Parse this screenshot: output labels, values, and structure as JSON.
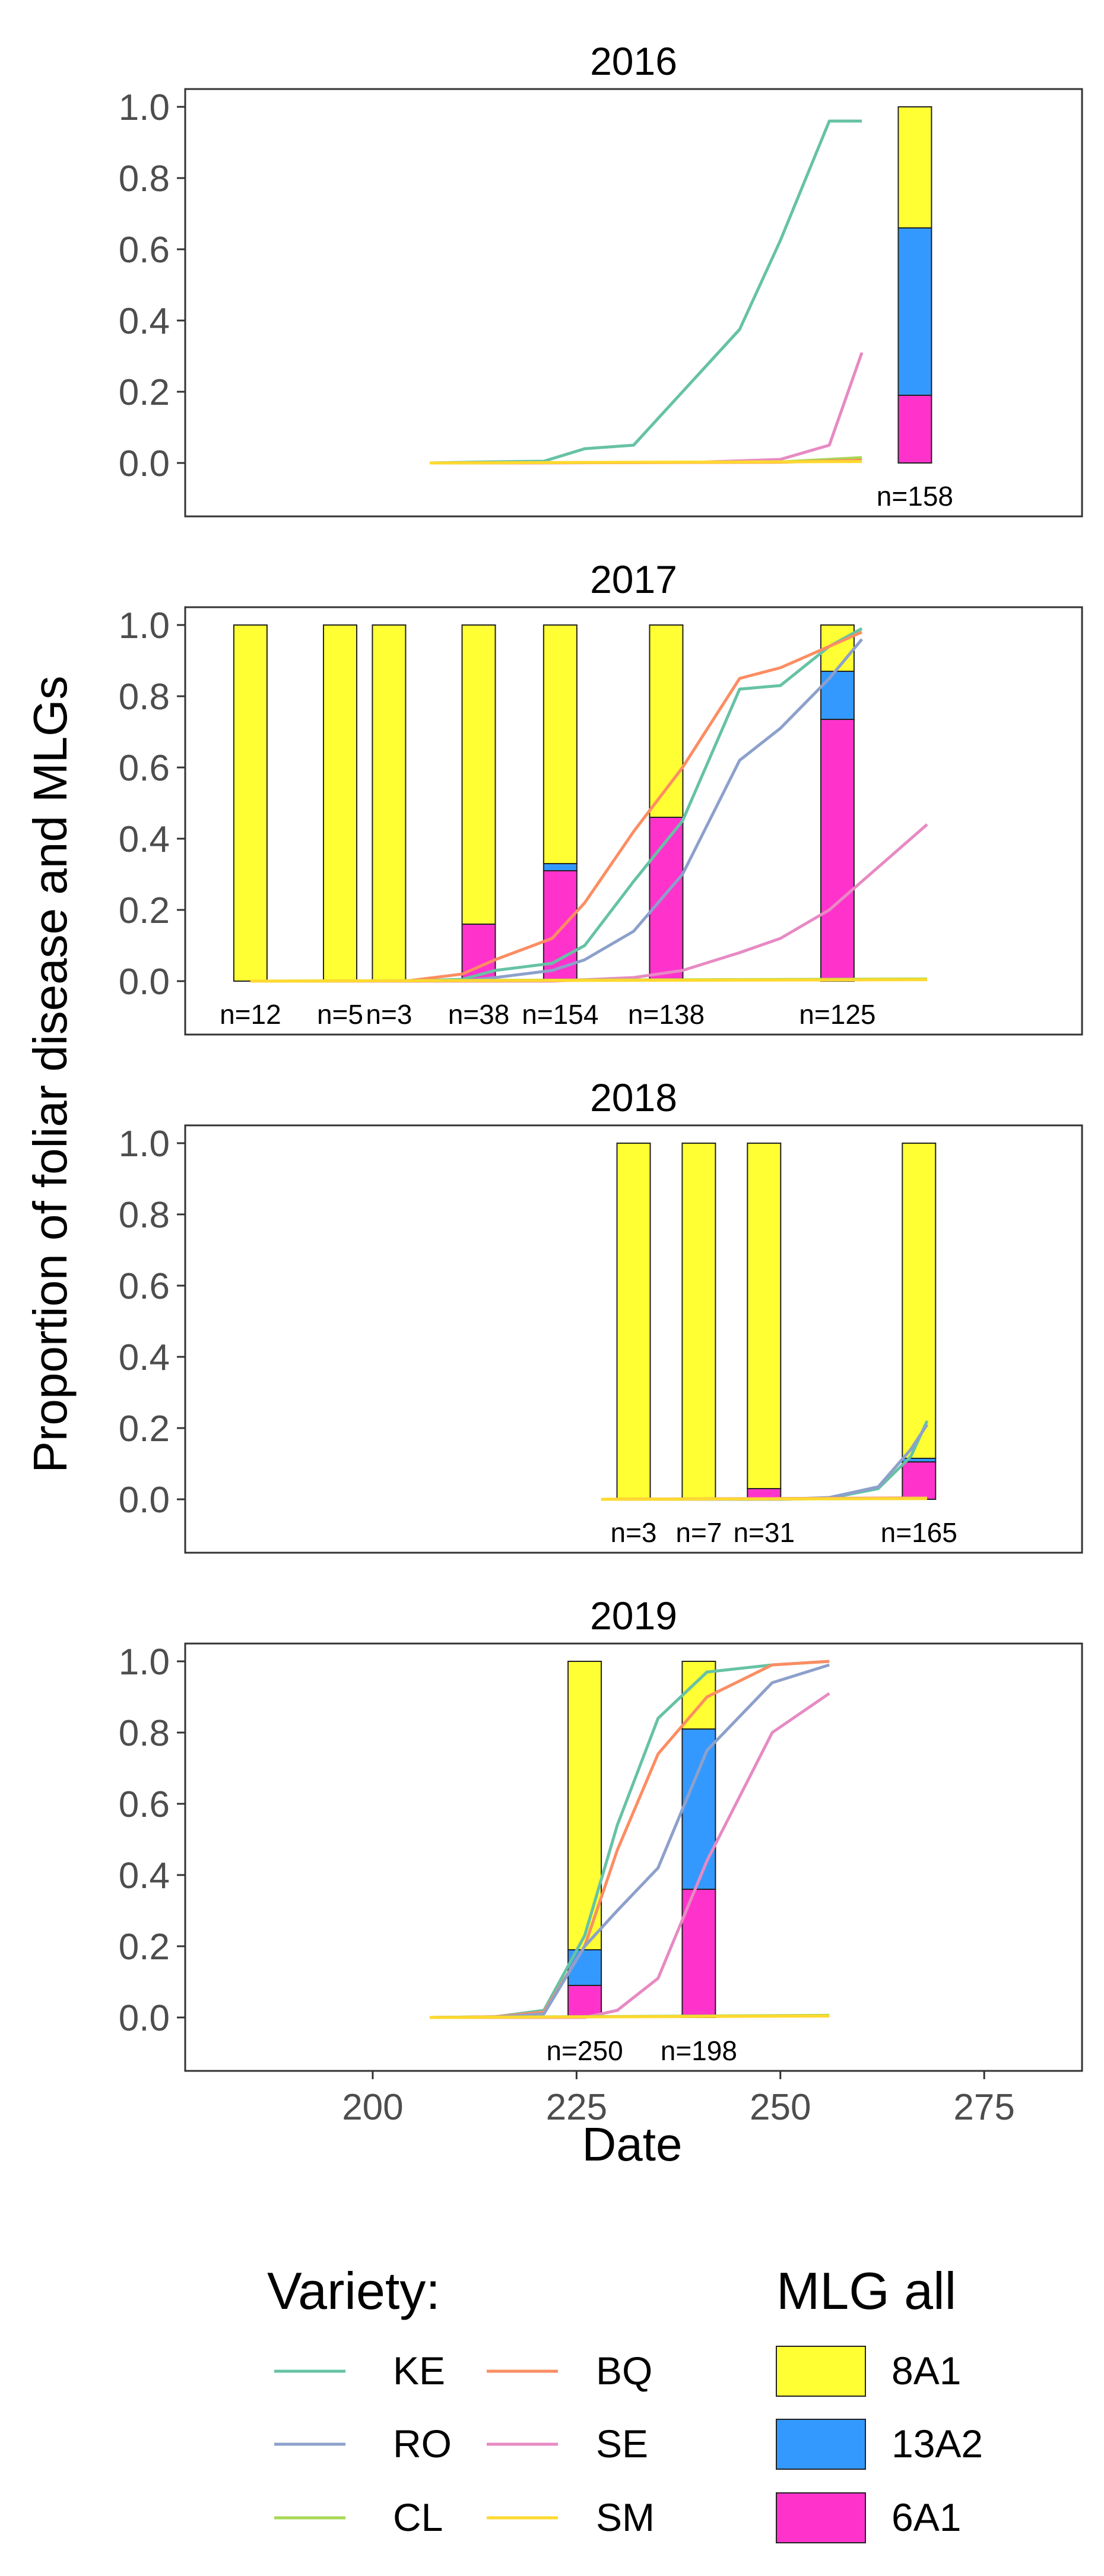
{
  "chart_data": {
    "type": "line",
    "ylabel": "Proportion of foliar disease and MLGs",
    "xlabel": "Date",
    "x_ticks": [
      200,
      225,
      250,
      275
    ],
    "y_ticks": [
      "0.0",
      "0.2",
      "0.4",
      "0.6",
      "0.8",
      "1.0"
    ],
    "xlim": [
      177,
      287
    ],
    "ylim": [
      -0.15,
      1.05
    ],
    "grid": false,
    "legend_position": "bottom",
    "variety_legend": {
      "title": "Variety:",
      "items": [
        {
          "name": "KE",
          "color": "#66c2a5"
        },
        {
          "name": "BQ",
          "color": "#fc8d62"
        },
        {
          "name": "RO",
          "color": "#8da0cb"
        },
        {
          "name": "SE",
          "color": "#e78ac3"
        },
        {
          "name": "CL",
          "color": "#a6d854"
        },
        {
          "name": "SM",
          "color": "#ffd92f"
        }
      ]
    },
    "mlg_legend": {
      "title": "MLG all",
      "items": [
        {
          "name": "8A1",
          "color": "#ffff33"
        },
        {
          "name": "13A2",
          "color": "#3399ff"
        },
        {
          "name": "6A1",
          "color": "#ff33cc"
        }
      ]
    },
    "panels": [
      {
        "title": "2016",
        "series": [
          {
            "name": "KE",
            "x": [
              207,
              214,
              221,
              226,
              232,
              240,
              245,
              250,
              256,
              260
            ],
            "y": [
              0.0,
              0.003,
              0.005,
              0.04,
              0.05,
              0.25,
              0.375,
              0.625,
              0.96,
              0.96
            ]
          },
          {
            "name": "SE",
            "x": [
              207,
              220,
              240,
              250,
              256,
              260
            ],
            "y": [
              0.0,
              0.0,
              0.002,
              0.01,
              0.05,
              0.31
            ]
          },
          {
            "name": "CL",
            "x": [
              207,
              250,
              260
            ],
            "y": [
              0.0,
              0.003,
              0.015
            ]
          },
          {
            "name": "BQ",
            "x": [
              207,
              250,
              260
            ],
            "y": [
              0.0,
              0.002,
              0.008
            ]
          },
          {
            "name": "SM",
            "x": [
              207,
              260
            ],
            "y": [
              0.0,
              0.004
            ]
          }
        ],
        "bars": [
          {
            "x": 266.5,
            "n_label": "n=158",
            "segments": {
              "8A1": 0.34,
              "13A2": 0.47,
              "6A1": 0.19
            }
          }
        ]
      },
      {
        "title": "2017",
        "series": [
          {
            "name": "KE",
            "x": [
              185,
              199,
              204,
              211,
              215,
              222,
              226,
              232,
              238,
              245,
              250,
              256,
              260
            ],
            "y": [
              0.0,
              0.0,
              0.0,
              0.005,
              0.03,
              0.05,
              0.1,
              0.28,
              0.45,
              0.82,
              0.83,
              0.94,
              0.99
            ]
          },
          {
            "name": "BQ",
            "x": [
              185,
              204,
              211,
              215,
              222,
              226,
              232,
              238,
              245,
              250,
              256,
              260
            ],
            "y": [
              0.0,
              0.0,
              0.02,
              0.06,
              0.12,
              0.22,
              0.42,
              0.6,
              0.85,
              0.88,
              0.94,
              0.98
            ]
          },
          {
            "name": "RO",
            "x": [
              185,
              211,
              215,
              222,
              226,
              232,
              238,
              245,
              250,
              256,
              260
            ],
            "y": [
              0.0,
              0.0,
              0.01,
              0.03,
              0.06,
              0.14,
              0.3,
              0.62,
              0.71,
              0.85,
              0.96
            ]
          },
          {
            "name": "SE",
            "x": [
              185,
              222,
              232,
              238,
              245,
              250,
              256,
              260,
              265,
              268
            ],
            "y": [
              0.0,
              0.0,
              0.01,
              0.03,
              0.08,
              0.12,
              0.2,
              0.28,
              0.38,
              0.44
            ]
          },
          {
            "name": "CL",
            "x": [
              185,
              268
            ],
            "y": [
              0.0,
              0.006
            ]
          },
          {
            "name": "SM",
            "x": [
              185,
              268
            ],
            "y": [
              0.0,
              0.004
            ]
          }
        ],
        "bars": [
          {
            "x": 185,
            "n_label": "n=12",
            "segments": {
              "8A1": 1.0,
              "13A2": 0.0,
              "6A1": 0.0
            }
          },
          {
            "x": 196,
            "n_label": "n=5",
            "segments": {
              "8A1": 1.0,
              "13A2": 0.0,
              "6A1": 0.0
            }
          },
          {
            "x": 202,
            "n_label": "n=3",
            "segments": {
              "8A1": 1.0,
              "13A2": 0.0,
              "6A1": 0.0
            }
          },
          {
            "x": 213,
            "n_label": "n=38",
            "segments": {
              "8A1": 0.84,
              "13A2": 0.0,
              "6A1": 0.16
            }
          },
          {
            "x": 223,
            "n_label": "n=154",
            "segments": {
              "8A1": 0.67,
              "13A2": 0.02,
              "6A1": 0.31
            }
          },
          {
            "x": 236,
            "n_label": "n=138",
            "segments": {
              "8A1": 0.54,
              "13A2": 0.0,
              "6A1": 0.46
            }
          },
          {
            "x": 257,
            "n_label": "n=125",
            "segments": {
              "8A1": 0.13,
              "13A2": 0.135,
              "6A1": 0.735
            }
          }
        ]
      },
      {
        "title": "2018",
        "series": [
          {
            "name": "KE",
            "x": [
              228,
              250,
              256,
              262,
              266,
              268
            ],
            "y": [
              0.0,
              0.0,
              0.003,
              0.03,
              0.12,
              0.22
            ]
          },
          {
            "name": "RO",
            "x": [
              228,
              250,
              256,
              262,
              266,
              268
            ],
            "y": [
              0.0,
              0.0,
              0.005,
              0.035,
              0.14,
              0.21
            ]
          },
          {
            "name": "BQ",
            "x": [
              228,
              268
            ],
            "y": [
              0.0,
              0.004
            ]
          },
          {
            "name": "SE",
            "x": [
              228,
              268
            ],
            "y": [
              0.0,
              0.003
            ]
          },
          {
            "name": "CL",
            "x": [
              228,
              268
            ],
            "y": [
              0.0,
              0.002
            ]
          },
          {
            "name": "SM",
            "x": [
              228,
              268
            ],
            "y": [
              0.0,
              0.002
            ]
          }
        ],
        "bars": [
          {
            "x": 232,
            "n_label": "n=3",
            "segments": {
              "8A1": 1.0,
              "13A2": 0.0,
              "6A1": 0.0
            }
          },
          {
            "x": 240,
            "n_label": "n=7",
            "segments": {
              "8A1": 1.0,
              "13A2": 0.0,
              "6A1": 0.0
            }
          },
          {
            "x": 248,
            "n_label": "n=31",
            "segments": {
              "8A1": 0.97,
              "13A2": 0.0,
              "6A1": 0.03
            }
          },
          {
            "x": 267,
            "n_label": "n=165",
            "segments": {
              "8A1": 0.885,
              "13A2": 0.01,
              "6A1": 0.105
            }
          }
        ]
      },
      {
        "title": "2019",
        "series": [
          {
            "name": "KE",
            "x": [
              207,
              215,
              221,
              226,
              230,
              235,
              241,
              249,
              256
            ],
            "y": [
              0.0,
              0.002,
              0.02,
              0.23,
              0.54,
              0.84,
              0.97,
              0.99,
              1.0
            ]
          },
          {
            "name": "BQ",
            "x": [
              207,
              215,
              221,
              226,
              230,
              235,
              241,
              249,
              256
            ],
            "y": [
              0.0,
              0.002,
              0.015,
              0.2,
              0.47,
              0.74,
              0.9,
              0.99,
              1.0
            ]
          },
          {
            "name": "RO",
            "x": [
              207,
              215,
              221,
              226,
              230,
              235,
              241,
              249,
              256
            ],
            "y": [
              0.0,
              0.001,
              0.01,
              0.2,
              0.3,
              0.42,
              0.75,
              0.94,
              0.99
            ]
          },
          {
            "name": "SE",
            "x": [
              207,
              221,
              226,
              230,
              235,
              241,
              249,
              256
            ],
            "y": [
              0.0,
              0.0,
              0.0,
              0.02,
              0.11,
              0.44,
              0.8,
              0.91
            ]
          },
          {
            "name": "CL",
            "x": [
              207,
              256
            ],
            "y": [
              0.0,
              0.006
            ]
          },
          {
            "name": "SM",
            "x": [
              207,
              256
            ],
            "y": [
              0.0,
              0.004
            ]
          }
        ],
        "bars": [
          {
            "x": 226,
            "n_label": "n=250",
            "segments": {
              "8A1": 0.81,
              "13A2": 0.1,
              "6A1": 0.09
            }
          },
          {
            "x": 240,
            "n_label": "n=198",
            "segments": {
              "8A1": 0.19,
              "13A2": 0.45,
              "6A1": 0.36
            }
          }
        ]
      }
    ]
  }
}
